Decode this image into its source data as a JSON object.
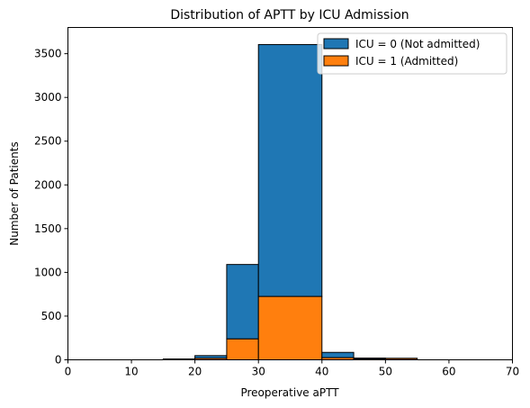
{
  "chart_data": {
    "type": "bar",
    "subtype": "stacked-histogram",
    "title": "Distribution of APTT by ICU Admission",
    "xlabel": "Preoperative aPTT",
    "ylabel": "Number of Patients",
    "xlim": [
      0,
      70
    ],
    "ylim": [
      0,
      3800
    ],
    "xticks": [
      0,
      10,
      20,
      30,
      40,
      50,
      60,
      70
    ],
    "yticks": [
      0,
      500,
      1000,
      1500,
      2000,
      2500,
      3000,
      3500
    ],
    "grid": false,
    "legend_position": "top-right",
    "bins": [
      {
        "x0": 15,
        "x1": 20
      },
      {
        "x0": 20,
        "x1": 25
      },
      {
        "x0": 25,
        "x1": 30
      },
      {
        "x0": 30,
        "x1": 40
      },
      {
        "x0": 40,
        "x1": 45
      },
      {
        "x0": 45,
        "x1": 50
      },
      {
        "x0": 50,
        "x1": 55
      }
    ],
    "series": [
      {
        "name": "ICU = 0 (Not admitted)",
        "color": "#1f77b4",
        "values": [
          8,
          30,
          850,
          2880,
          60,
          12,
          3
        ]
      },
      {
        "name": "ICU = 1 (Admitted)",
        "color": "#ff7f0e",
        "values": [
          2,
          18,
          240,
          725,
          25,
          8,
          15
        ]
      }
    ]
  }
}
